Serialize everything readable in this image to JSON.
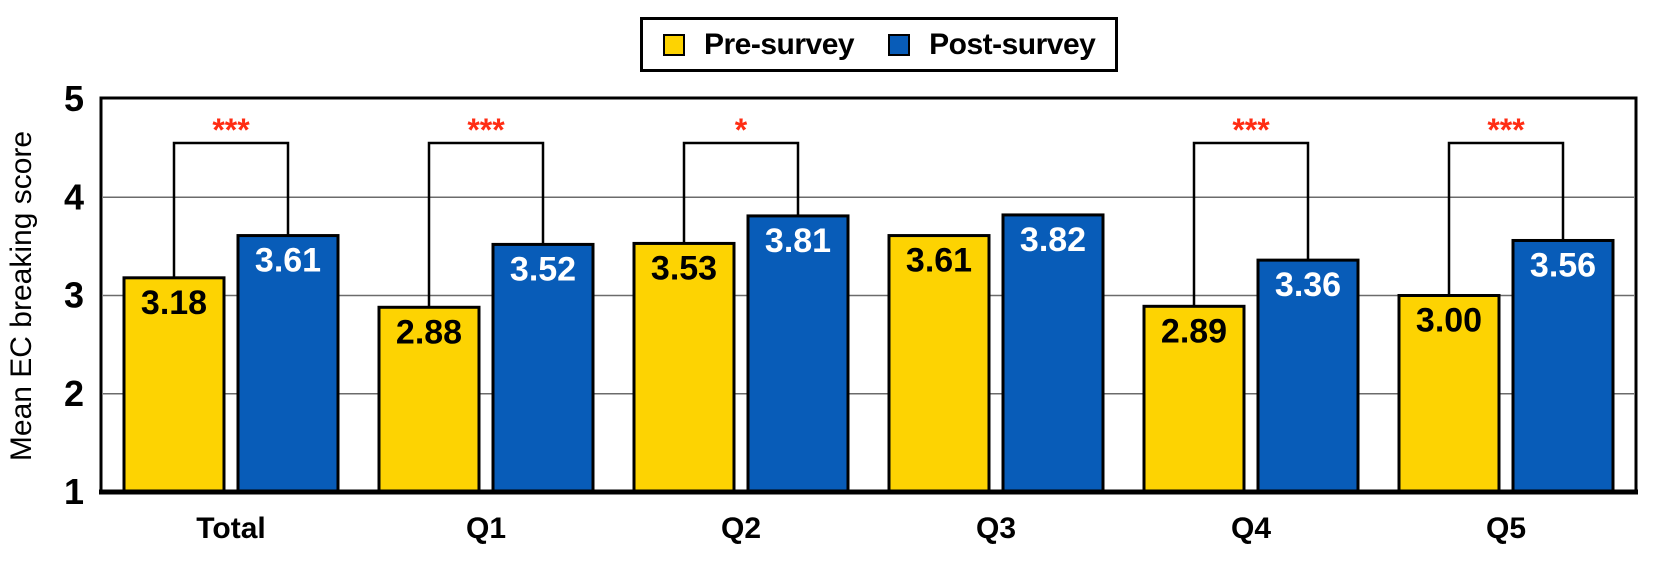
{
  "chart_data": {
    "type": "bar",
    "title": "",
    "ylabel": "Mean EC breaking score",
    "xlabel": "",
    "categories": [
      "Total",
      "Q1",
      "Q2",
      "Q3",
      "Q4",
      "Q5"
    ],
    "series": [
      {
        "name": "Pre-survey",
        "color": "#FDD302",
        "label_color": "#000000",
        "values": [
          3.18,
          2.88,
          3.53,
          3.61,
          2.89,
          3.0
        ],
        "labels": [
          "3.18",
          "2.88",
          "3.53",
          "3.61",
          "2.89",
          "3.00"
        ]
      },
      {
        "name": "Post-survey",
        "color": "#085CB8",
        "label_color": "#FFFFFF",
        "values": [
          3.61,
          3.52,
          3.81,
          3.82,
          3.36,
          3.56
        ],
        "labels": [
          "3.61",
          "3.52",
          "3.81",
          "3.82",
          "3.36",
          "3.56"
        ]
      }
    ],
    "significance": [
      "***",
      "***",
      "*",
      "",
      "***",
      "***"
    ],
    "significance_color": "#FF2D14",
    "ylim": [
      1,
      5
    ],
    "yticks": [
      "1",
      "2",
      "3",
      "4",
      "5"
    ],
    "gridlines": [
      2,
      3,
      4
    ],
    "grid": true,
    "legend_position": "top-center",
    "axis_color": "#000000",
    "gridline_color": "#6B6B6B"
  }
}
